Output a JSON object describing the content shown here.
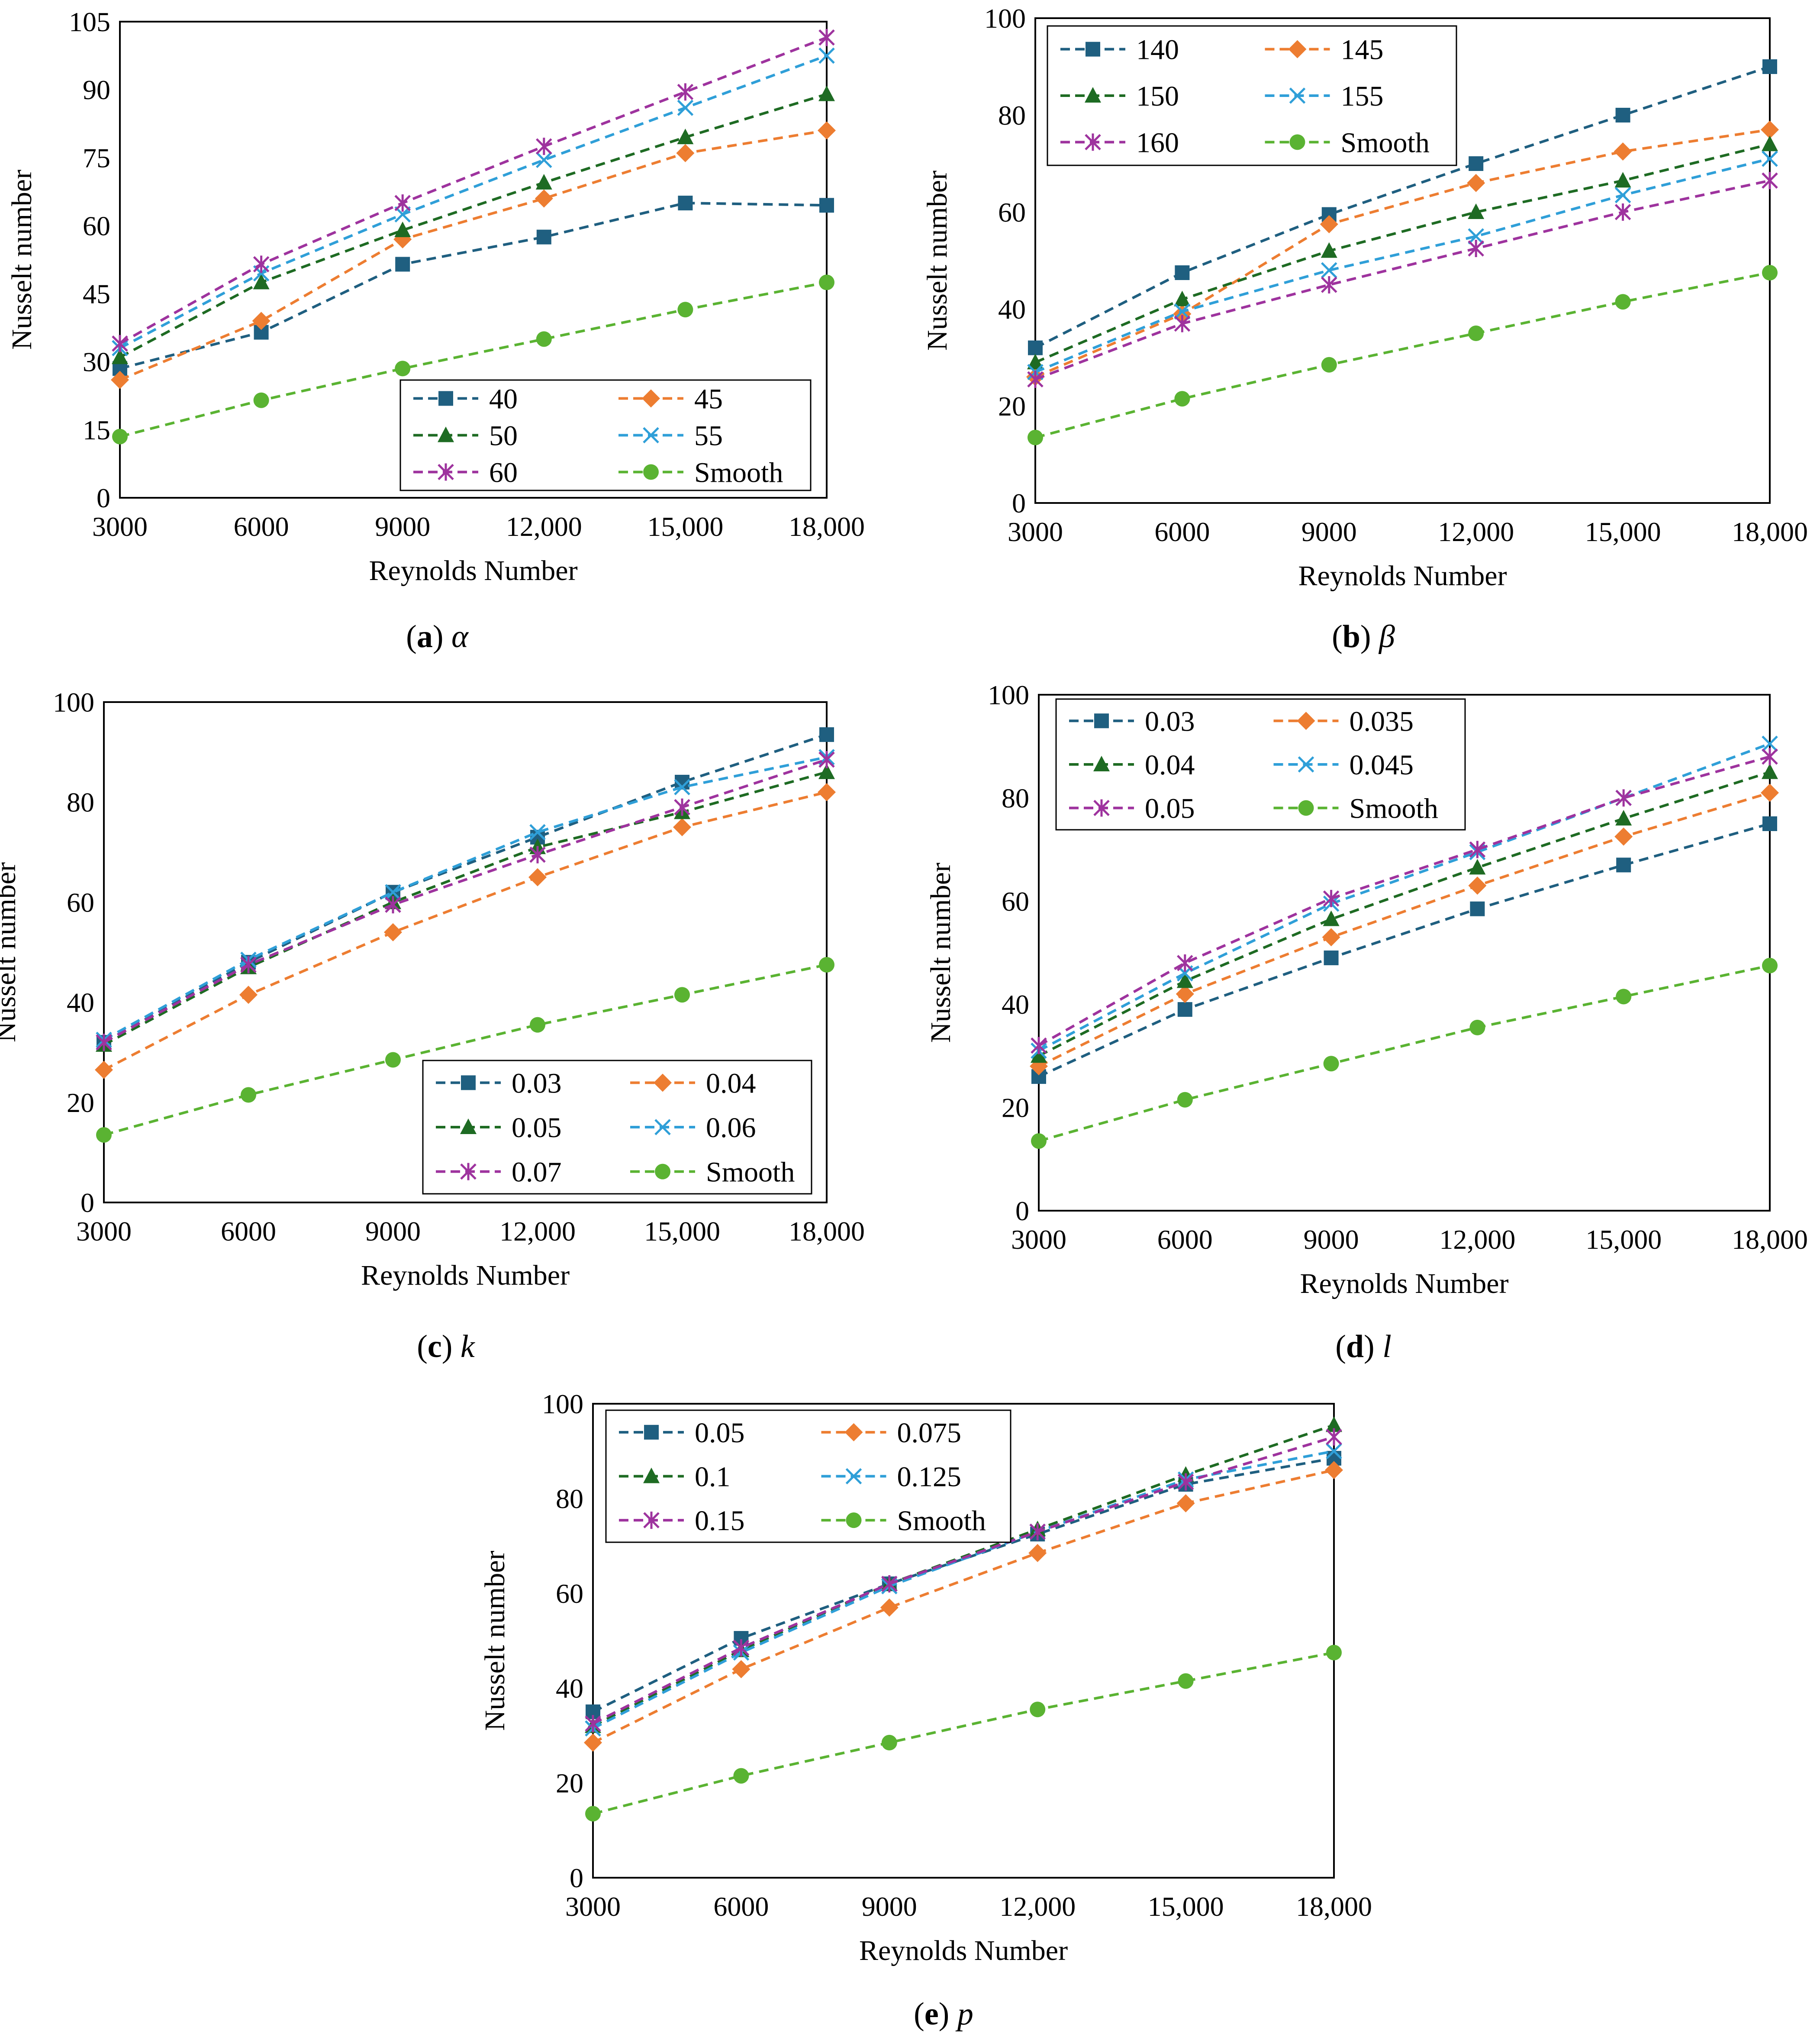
{
  "figure": {
    "marker_styles": [
      "square",
      "diamond",
      "triangle",
      "x",
      "star",
      "circle"
    ],
    "series_colors": [
      "#1f5f80",
      "#ed7d31",
      "#1e6b23",
      "#2f9fd8",
      "#9e339e",
      "#5ab332"
    ]
  },
  "chart_data": [
    {
      "id": "a",
      "type": "line",
      "caption_letter": "(a)",
      "caption_symbol": "α",
      "xlabel": "Reynolds Number",
      "ylabel": "Nusselt number",
      "x": [
        3000,
        6000,
        9000,
        12000,
        15000,
        18000
      ],
      "x_tick_labels": [
        "3000",
        "6000",
        "9000",
        "12,000",
        "15,000",
        "18,000"
      ],
      "ylim": [
        0,
        105
      ],
      "y_ticks": [
        0,
        15,
        30,
        45,
        60,
        75,
        90,
        105
      ],
      "y_tick_labels": [
        "0",
        "15",
        "30",
        "45",
        "60",
        "75",
        "90",
        "105"
      ],
      "legend_position": "bottom-right",
      "series": [
        {
          "name": "40",
          "values": [
            28.5,
            36.5,
            51.5,
            57.5,
            65,
            64.5
          ]
        },
        {
          "name": "45",
          "values": [
            26,
            39,
            57,
            66,
            76,
            81
          ]
        },
        {
          "name": "50",
          "values": [
            31,
            47.5,
            59,
            69.5,
            79.5,
            89
          ]
        },
        {
          "name": "55",
          "values": [
            33,
            49.5,
            62.5,
            74.5,
            86,
            97.5
          ]
        },
        {
          "name": "60",
          "values": [
            34,
            51.5,
            65,
            77.5,
            89.5,
            101.5
          ]
        },
        {
          "name": "Smooth",
          "values": [
            13.5,
            21.5,
            28.5,
            35,
            41.5,
            47.5
          ]
        }
      ]
    },
    {
      "id": "b",
      "type": "line",
      "caption_letter": "(b)",
      "caption_symbol": "β",
      "xlabel": "Reynolds Number",
      "ylabel": "Nusselt number",
      "x": [
        3000,
        6000,
        9000,
        12000,
        15000,
        18000
      ],
      "x_tick_labels": [
        "3000",
        "6000",
        "9000",
        "12,000",
        "15,000",
        "18,000"
      ],
      "ylim": [
        0,
        100
      ],
      "y_ticks": [
        0,
        20,
        40,
        60,
        80,
        100
      ],
      "y_tick_labels": [
        "0",
        "20",
        "40",
        "60",
        "80",
        "100"
      ],
      "legend_position": "top-left",
      "series": [
        {
          "name": "140",
          "values": [
            32,
            47.5,
            59.5,
            70,
            80,
            90
          ]
        },
        {
          "name": "145",
          "values": [
            26,
            39,
            57.5,
            66,
            72.5,
            77
          ]
        },
        {
          "name": "150",
          "values": [
            29,
            42,
            52,
            60,
            66.5,
            74
          ]
        },
        {
          "name": "155",
          "values": [
            27,
            39.5,
            48,
            55,
            63.5,
            71
          ]
        },
        {
          "name": "160",
          "values": [
            25.5,
            37,
            45,
            52.5,
            60,
            66.5
          ]
        },
        {
          "name": "Smooth",
          "values": [
            13.5,
            21.5,
            28.5,
            35,
            41.5,
            47.5
          ]
        }
      ]
    },
    {
      "id": "c",
      "type": "line",
      "caption_letter": "(c)",
      "caption_symbol": "k",
      "xlabel": "Reynolds Number",
      "ylabel": "Nusselt number",
      "x": [
        3000,
        6000,
        9000,
        12000,
        15000,
        18000
      ],
      "x_tick_labels": [
        "3000",
        "6000",
        "9000",
        "12,000",
        "15,000",
        "18,000"
      ],
      "ylim": [
        0,
        100
      ],
      "y_ticks": [
        0,
        20,
        40,
        60,
        80,
        100
      ],
      "y_tick_labels": [
        "0",
        "20",
        "40",
        "60",
        "80",
        "100"
      ],
      "legend_position": "bottom-right",
      "series": [
        {
          "name": "0.03",
          "values": [
            32,
            48,
            62,
            73,
            84,
            93.5
          ]
        },
        {
          "name": "0.04",
          "values": [
            26.5,
            41.5,
            54,
            65,
            75,
            82
          ]
        },
        {
          "name": "0.05",
          "values": [
            31.5,
            47,
            60,
            71,
            78,
            86
          ]
        },
        {
          "name": "0.06",
          "values": [
            32.5,
            48.5,
            62,
            74,
            83,
            89
          ]
        },
        {
          "name": "0.07",
          "values": [
            32,
            47.5,
            59.5,
            69.5,
            79,
            88.5
          ]
        },
        {
          "name": "Smooth",
          "values": [
            13.5,
            21.5,
            28.5,
            35.5,
            41.5,
            47.5
          ]
        }
      ]
    },
    {
      "id": "d",
      "type": "line",
      "caption_letter": "(d)",
      "caption_symbol": "l",
      "xlabel": "Reynolds Number",
      "ylabel": "Nusselt number",
      "x": [
        3000,
        6000,
        9000,
        12000,
        15000,
        18000
      ],
      "x_tick_labels": [
        "3000",
        "6000",
        "9000",
        "12,000",
        "15,000",
        "18,000"
      ],
      "ylim": [
        0,
        100
      ],
      "y_ticks": [
        0,
        20,
        40,
        60,
        80,
        100
      ],
      "y_tick_labels": [
        "0",
        "20",
        "40",
        "60",
        "80",
        "100"
      ],
      "legend_position": "top-left",
      "series": [
        {
          "name": "0.03",
          "values": [
            26,
            39,
            49,
            58.5,
            67,
            75
          ]
        },
        {
          "name": "0.035",
          "values": [
            28,
            42,
            53,
            63,
            72.5,
            81
          ]
        },
        {
          "name": "0.04",
          "values": [
            30,
            44.5,
            56.5,
            66.5,
            76,
            85
          ]
        },
        {
          "name": "0.045",
          "values": [
            31,
            46,
            59.5,
            69.5,
            80,
            90.5
          ]
        },
        {
          "name": "0.05",
          "values": [
            32,
            48,
            60.5,
            70,
            80,
            88
          ]
        },
        {
          "name": "Smooth",
          "values": [
            13.5,
            21.5,
            28.5,
            35.5,
            41.5,
            47.5
          ]
        }
      ]
    },
    {
      "id": "e",
      "type": "line",
      "caption_letter": "(e)",
      "caption_symbol": "p",
      "xlabel": "Reynolds Number",
      "ylabel": "Nusselt number",
      "x": [
        3000,
        6000,
        9000,
        12000,
        15000,
        18000
      ],
      "x_tick_labels": [
        "3000",
        "6000",
        "9000",
        "12,000",
        "15,000",
        "18,000"
      ],
      "ylim": [
        0,
        100
      ],
      "y_ticks": [
        0,
        20,
        40,
        60,
        80,
        100
      ],
      "y_tick_labels": [
        "0",
        "20",
        "40",
        "60",
        "80",
        "100"
      ],
      "legend_position": "top-left",
      "series": [
        {
          "name": "0.05",
          "values": [
            35,
            50.5,
            62,
            72.5,
            83,
            88.5
          ]
        },
        {
          "name": "0.075",
          "values": [
            28.5,
            44,
            57,
            68.5,
            79,
            86
          ]
        },
        {
          "name": "0.1",
          "values": [
            32,
            48,
            62,
            73.5,
            85,
            95.5
          ]
        },
        {
          "name": "0.125",
          "values": [
            31.5,
            47.5,
            61.5,
            73,
            84,
            90
          ]
        },
        {
          "name": "0.15",
          "values": [
            32.5,
            48.5,
            62,
            73,
            83.5,
            93
          ]
        },
        {
          "name": "Smooth",
          "values": [
            13.5,
            21.5,
            28.5,
            35.5,
            41.5,
            47.5
          ]
        }
      ]
    }
  ]
}
